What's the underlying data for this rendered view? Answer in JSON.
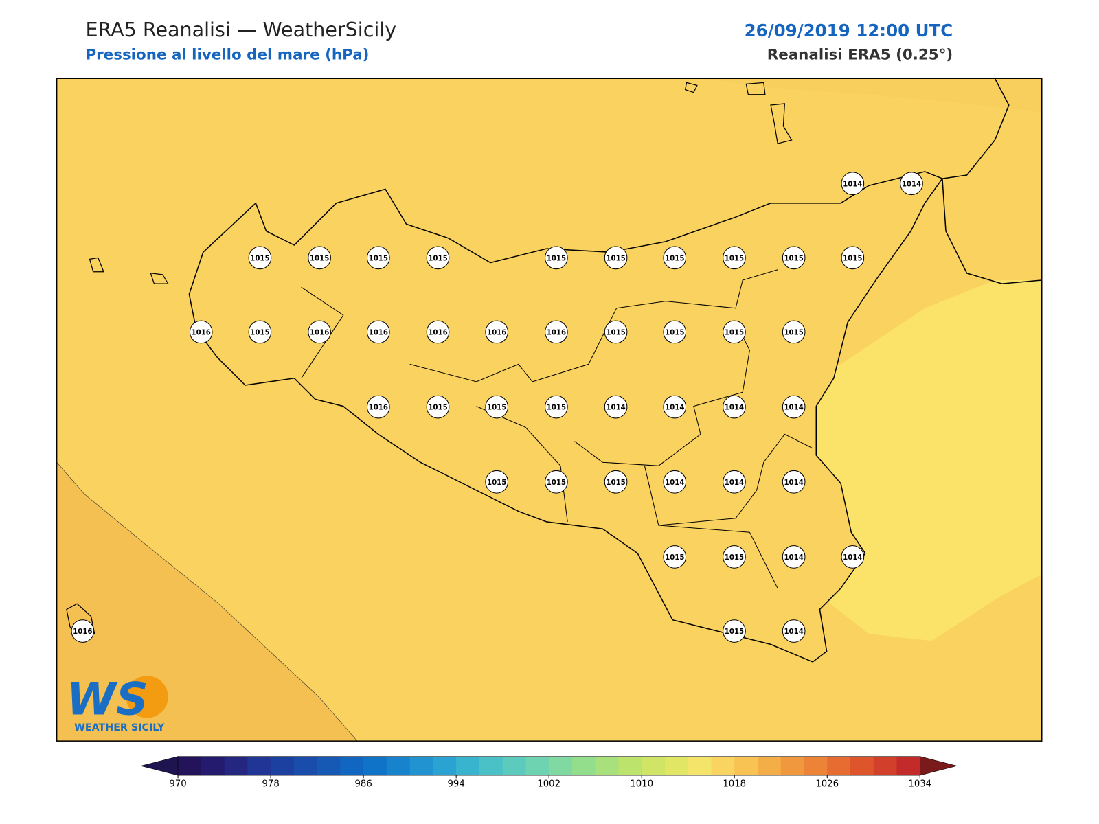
{
  "header": {
    "title": "ERA5 Reanalisi — WeatherSicily",
    "subtitle": "Pressione al livello del mare (hPa)",
    "date": "26/09/2019 12:00 UTC",
    "source": "Reanalisi ERA5 (0.25°)"
  },
  "stations": [
    1014,
    1014,
    1015,
    1015,
    1015,
    1015,
    1015,
    1015,
    1015,
    1015,
    1015,
    1015,
    1016,
    1015,
    1016,
    1016,
    1016,
    1016,
    1016,
    1015,
    1015,
    1015,
    1015,
    1016,
    1015,
    1015,
    1015,
    1014,
    1014,
    1014,
    1014,
    1015,
    1015,
    1015,
    1014,
    1014,
    1014,
    1015,
    1015,
    1014,
    1014,
    1016,
    1015,
    1014
  ],
  "logo": {
    "text": "WS",
    "caption": "WEATHER SICILY"
  },
  "colorbar": {
    "lim": [
      970,
      1034
    ],
    "ticks": [
      970,
      978,
      986,
      994,
      1002,
      1010,
      1018,
      1026,
      1034
    ],
    "under": "#1e1550",
    "over": "#7a1a1a",
    "colors": [
      "#23135a",
      "#241a6e",
      "#252680",
      "#203596",
      "#1c409f",
      "#1a4dab",
      "#1559b5",
      "#1066c0",
      "#0f74c8",
      "#1783cc",
      "#2093d0",
      "#2aa3d2",
      "#38b4cf",
      "#4ac1c7",
      "#5ccbbd",
      "#6dd3b0",
      "#80d9a0",
      "#93de8d",
      "#a8e17b",
      "#bce36c",
      "#d0e565",
      "#e2e665",
      "#f4e46a",
      "#fad460",
      "#f8c352",
      "#f4ae47",
      "#f0983e",
      "#ec8337",
      "#e66c31",
      "#de552c",
      "#d23f2a",
      "#c22b29"
    ]
  }
}
